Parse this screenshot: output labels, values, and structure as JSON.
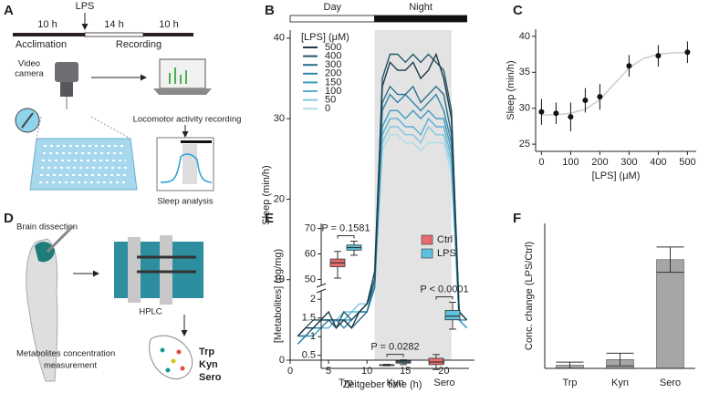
{
  "panel_labels": [
    "A",
    "B",
    "C",
    "D",
    "E",
    "F"
  ],
  "panel_a": {
    "durations": [
      "10 h",
      "14 h",
      "10 h"
    ],
    "stimulus": "LPS",
    "phases": [
      "Acclimation",
      "Recording"
    ],
    "camera": [
      "Video",
      "camera"
    ],
    "recording": "Locomotor activity recording",
    "analysis": "Sleep analysis"
  },
  "panel_d": {
    "dissection": "Brain dissection",
    "device": "HPLC",
    "measurement": [
      "Metabolites concentration",
      "measurement"
    ],
    "metabolites": [
      {
        "name": "Trp",
        "color": "#1a9a8f"
      },
      {
        "name": "Kyn",
        "color": "#d8c417"
      },
      {
        "name": "Sero",
        "color": "#e0503a"
      }
    ]
  },
  "chart_data": [
    {
      "type": "line",
      "xlabel": "Zeitgeber time (h)",
      "ylabel": "Sleep (min/h)",
      "legend_title": "[LPS] (μM)",
      "periods": [
        {
          "label": "Day",
          "range": [
            0,
            11
          ]
        },
        {
          "label": "Night",
          "range": [
            11,
            23
          ]
        }
      ],
      "shaded": [
        11,
        21
      ],
      "x": [
        1,
        2,
        3,
        4,
        5,
        6,
        7,
        8,
        9,
        10,
        11,
        12,
        13,
        14,
        15,
        16,
        17,
        18,
        19,
        20,
        21,
        22,
        23
      ],
      "series": [
        {
          "name": "500",
          "color": "#1d3b48",
          "values": [
            3,
            4,
            4,
            5,
            6,
            4,
            5,
            4,
            6,
            7,
            11,
            34,
            37,
            36,
            36,
            37,
            35,
            36,
            38,
            35,
            30,
            6,
            5
          ]
        },
        {
          "name": "400",
          "color": "#24566a",
          "values": [
            3,
            4,
            5,
            5,
            5,
            4,
            6,
            5,
            6,
            7,
            10,
            35,
            38,
            38,
            37,
            38,
            37,
            38,
            37,
            36,
            31,
            6,
            5
          ]
        },
        {
          "name": "300",
          "color": "#2a6f8c",
          "values": [
            3,
            3,
            4,
            5,
            5,
            5,
            5,
            4,
            5,
            6,
            10,
            32,
            34,
            33,
            33,
            34,
            32,
            33,
            34,
            33,
            28,
            6,
            5
          ]
        },
        {
          "name": "200",
          "color": "#2f86a8",
          "values": [
            2,
            3,
            4,
            4,
            5,
            5,
            4,
            5,
            6,
            6,
            9,
            31,
            33,
            32,
            33,
            32,
            31,
            32,
            33,
            31,
            27,
            5,
            5
          ]
        },
        {
          "name": "150",
          "color": "#3d9cc2",
          "values": [
            2,
            3,
            3,
            4,
            5,
            5,
            5,
            5,
            6,
            6,
            9,
            29,
            31,
            31,
            30,
            31,
            30,
            31,
            30,
            30,
            26,
            5,
            4
          ]
        },
        {
          "name": "100",
          "color": "#5db0d2",
          "values": [
            2,
            3,
            4,
            4,
            4,
            5,
            5,
            6,
            6,
            7,
            9,
            28,
            30,
            30,
            29,
            29,
            28,
            30,
            29,
            29,
            25,
            5,
            4
          ]
        },
        {
          "name": "50",
          "color": "#84c6df",
          "values": [
            3,
            3,
            4,
            4,
            5,
            5,
            6,
            6,
            7,
            7,
            9,
            27,
            29,
            29,
            28,
            28,
            27,
            29,
            28,
            28,
            24,
            5,
            4
          ]
        },
        {
          "name": "0",
          "color": "#afdbea",
          "values": [
            3,
            3,
            3,
            4,
            4,
            5,
            5,
            6,
            7,
            7,
            9,
            26,
            28,
            28,
            27,
            27,
            26,
            27,
            27,
            27,
            23,
            5,
            4
          ]
        }
      ],
      "xlim": [
        0,
        24
      ],
      "xticks": [
        0,
        5,
        10,
        15,
        20
      ],
      "ylim": [
        0,
        41
      ],
      "yticks": [
        0,
        10,
        20,
        30,
        40
      ]
    },
    {
      "type": "scatter",
      "xlabel": "[LPS] (μM)",
      "ylabel": "Sleep (min/h)",
      "color": "#111111",
      "x": [
        0,
        50,
        100,
        150,
        200,
        300,
        400,
        500
      ],
      "values": [
        29.5,
        29.3,
        28.8,
        31.1,
        31.6,
        35.9,
        37.3,
        37.8
      ],
      "errors": [
        1.8,
        1.5,
        2.0,
        1.7,
        1.8,
        1.5,
        1.5,
        1.5
      ],
      "fit": {
        "color": "#cccccc",
        "x": [
          0,
          50,
          100,
          150,
          200,
          250,
          300,
          350,
          400,
          450,
          500
        ],
        "values": [
          29.03,
          29.1,
          29.3,
          29.86,
          31.18,
          33.4,
          35.62,
          36.94,
          37.51,
          37.7,
          37.77
        ]
      },
      "xlim": [
        -20,
        530
      ],
      "xticks": [
        0,
        100,
        200,
        300,
        400,
        500
      ],
      "ylim": [
        24,
        41
      ],
      "yticks": [
        25,
        30,
        35,
        40
      ]
    },
    {
      "type": "box",
      "ylabel": "[Metabolites] (pg/mg)",
      "categories": [
        "Trp",
        "Kyn",
        "Sero"
      ],
      "p_values": [
        "P = 0.1581",
        "P = 0.0282",
        "P < 0.0001"
      ],
      "series": [
        {
          "name": "Ctrl",
          "color": "#e86b6e",
          "min": [
            50.5,
            0.22,
            0.12
          ],
          "q1": [
            55,
            0.23,
            0.25
          ],
          "median": [
            56.5,
            0.24,
            0.32
          ],
          "q3": [
            58,
            0.25,
            0.42
          ],
          "max": [
            61,
            0.26,
            0.52
          ]
        },
        {
          "name": "LPS",
          "color": "#5bc2df",
          "min": [
            59.5,
            0.25,
            1.2
          ],
          "q1": [
            61.5,
            0.29,
            1.45
          ],
          "median": [
            62.5,
            0.32,
            1.55
          ],
          "q3": [
            63.5,
            0.35,
            1.7
          ],
          "max": [
            65,
            0.38,
            1.92
          ]
        }
      ],
      "segments": [
        {
          "ylim": [
            0.15,
            2.2
          ],
          "yticks": [
            0.5,
            1,
            1.5,
            2
          ]
        },
        {
          "ylim": [
            48,
            72
          ],
          "yticks": [
            50,
            60,
            70
          ]
        }
      ]
    },
    {
      "type": "bar",
      "ylabel": "Conc. change (LPS/Ctrl)",
      "categories": [
        "Trp",
        "Kyn",
        "Sero"
      ],
      "color": "#a6a6a6",
      "values": [
        0.1,
        0.28,
        3.45
      ],
      "errors": [
        0.1,
        0.2,
        0.4
      ],
      "ylim": [
        0,
        4.6
      ]
    }
  ]
}
